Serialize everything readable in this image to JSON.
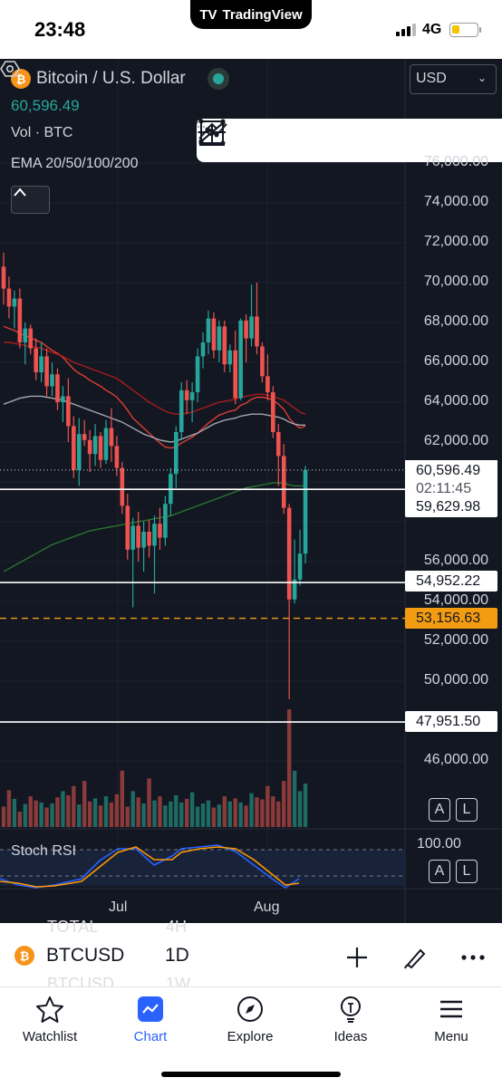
{
  "status_bar": {
    "time": "23:48",
    "app_name": "TradingView",
    "network": "4G"
  },
  "chart_header": {
    "pair": "Bitcoin / U.S. Dollar",
    "price": "60,596.49",
    "volume_label": "Vol · BTC",
    "indicator_label": "EMA 20/50/100/200",
    "currency": "USD"
  },
  "drawing_tools": [
    "trend-line",
    "horizontal-ray",
    "path",
    "rectangle",
    "ray",
    "measure"
  ],
  "price_axis": [
    "76,000.00",
    "74,000.00",
    "72,000.00",
    "70,000.00",
    "68,000.00",
    "66,000.00",
    "64,000.00",
    "62,000.00",
    "56,000.00",
    "54,000.00",
    "52,000.00",
    "50,000.00",
    "46,000.00"
  ],
  "price_lines": [
    {
      "label": "59,629.98",
      "style": "white"
    },
    {
      "label": "54,952.22",
      "style": "white"
    },
    {
      "label": "53,156.63",
      "style": "orange-dashed"
    },
    {
      "label": "47,951.50",
      "style": "white"
    }
  ],
  "last_price": {
    "price": "60,596.49",
    "countdown": "02:11:45"
  },
  "scale_buttons": {
    "auto": "A",
    "log": "L"
  },
  "stoch_rsi": {
    "label": "Stoch RSI",
    "level": "100.00"
  },
  "time_axis": [
    "Jul",
    "Aug"
  ],
  "symbol_bar": {
    "symbol": "BTCUSD",
    "interval": "1D",
    "ghost_above_symbol": "TOTAL",
    "ghost_above_interval": "4H",
    "ghost_below_symbol": "BTCUSD",
    "ghost_below_interval": "1W"
  },
  "tabs": [
    {
      "label": "Watchlist",
      "icon": "star-icon",
      "active": false
    },
    {
      "label": "Chart",
      "icon": "chart-icon",
      "active": true
    },
    {
      "label": "Explore",
      "icon": "compass-icon",
      "active": false
    },
    {
      "label": "Ideas",
      "icon": "lightbulb-icon",
      "active": false
    },
    {
      "label": "Menu",
      "icon": "hamburger-icon",
      "active": false
    }
  ],
  "colors": {
    "background": "#131722",
    "up": "#26a69a",
    "down": "#ef5350",
    "accent": "#2962ff",
    "alert_line": "#f39c12"
  },
  "chart_data": {
    "type": "candlestick",
    "symbol": "BTCUSD",
    "interval": "1D",
    "ylim": [
      45000,
      77000
    ],
    "x_ticks": [
      "Jul",
      "Aug"
    ],
    "candles": [
      [
        70800,
        71500,
        68900,
        69700
      ],
      [
        69700,
        70300,
        68200,
        68800
      ],
      [
        68800,
        69600,
        67700,
        69200
      ],
      [
        69200,
        69700,
        66700,
        67000
      ],
      [
        67000,
        68000,
        65900,
        67700
      ],
      [
        67700,
        67900,
        66400,
        66700
      ],
      [
        66700,
        67200,
        65100,
        65500
      ],
      [
        65500,
        67000,
        65000,
        66300
      ],
      [
        66300,
        66700,
        64300,
        64800
      ],
      [
        64800,
        66000,
        64300,
        65400
      ],
      [
        65400,
        65700,
        63600,
        64000
      ],
      [
        64000,
        64800,
        63000,
        64300
      ],
      [
        64300,
        65200,
        62000,
        62800
      ],
      [
        62800,
        63300,
        60200,
        60600
      ],
      [
        60600,
        63200,
        59800,
        62400
      ],
      [
        62400,
        63100,
        61800,
        62100
      ],
      [
        62100,
        62600,
        60500,
        61400
      ],
      [
        61400,
        62900,
        60800,
        62300
      ],
      [
        62300,
        62500,
        60700,
        61100
      ],
      [
        61100,
        63100,
        60900,
        62700
      ],
      [
        62700,
        63700,
        61000,
        61800
      ],
      [
        61800,
        62300,
        60300,
        60700
      ],
      [
        60700,
        61000,
        58400,
        58800
      ],
      [
        58800,
        59400,
        56100,
        56600
      ],
      [
        56600,
        58200,
        53700,
        57800
      ],
      [
        57800,
        58500,
        56000,
        56700
      ],
      [
        56700,
        58000,
        55500,
        57500
      ],
      [
        57500,
        58100,
        56200,
        56800
      ],
      [
        56800,
        58300,
        54400,
        57900
      ],
      [
        57900,
        58700,
        56600,
        57200
      ],
      [
        57200,
        59300,
        56800,
        58900
      ],
      [
        58900,
        60700,
        58300,
        60400
      ],
      [
        60400,
        62800,
        59700,
        62500
      ],
      [
        62500,
        65000,
        62100,
        64600
      ],
      [
        64600,
        65100,
        63400,
        64100
      ],
      [
        64100,
        65000,
        63000,
        64500
      ],
      [
        64500,
        66700,
        64000,
        66300
      ],
      [
        66300,
        67500,
        65700,
        67000
      ],
      [
        67000,
        68600,
        66400,
        68200
      ],
      [
        68200,
        68500,
        66200,
        66600
      ],
      [
        66600,
        68100,
        66000,
        67800
      ],
      [
        67800,
        68100,
        65500,
        65900
      ],
      [
        65900,
        66900,
        65500,
        66600
      ],
      [
        66600,
        67600,
        63900,
        64200
      ],
      [
        64200,
        68200,
        64100,
        68100
      ],
      [
        68100,
        68400,
        66000,
        67200
      ],
      [
        67200,
        69900,
        66800,
        68300
      ],
      [
        68300,
        70000,
        66400,
        66800
      ],
      [
        66800,
        67000,
        65000,
        65300
      ],
      [
        65300,
        66400,
        64100,
        64500
      ],
      [
        64500,
        64800,
        62200,
        62500
      ],
      [
        62500,
        62900,
        59800,
        61300
      ],
      [
        61300,
        61900,
        58400,
        58700
      ],
      [
        58700,
        58900,
        49100,
        54100
      ],
      [
        54100,
        57100,
        53900,
        55100
      ],
      [
        55100,
        57600,
        54800,
        56400
      ],
      [
        56400,
        60800,
        55900,
        60596
      ]
    ],
    "volume": [
      40,
      72,
      55,
      30,
      45,
      60,
      52,
      48,
      38,
      46,
      58,
      70,
      62,
      80,
      44,
      90,
      50,
      56,
      42,
      60,
      48,
      64,
      110,
      40,
      70,
      58,
      46,
      95,
      52,
      60,
      42,
      50,
      62,
      48,
      55,
      68,
      40,
      46,
      52,
      38,
      44,
      60,
      50,
      56,
      48,
      42,
      66,
      58,
      54,
      80,
      60,
      50,
      90,
      230,
      110,
      70,
      85
    ],
    "ema_lines": [
      {
        "period": 20,
        "color": "#f44336",
        "values": [
          67800,
          67700,
          67600,
          67450,
          67350,
          67250,
          67100,
          67000,
          66800,
          66600,
          66450,
          66250,
          65950,
          65650,
          65450,
          65300,
          65100,
          64950,
          64800,
          64600,
          64450,
          64250,
          63950,
          63600,
          63200,
          62950,
          62700,
          62450,
          62200,
          61950,
          61750,
          61700,
          61750,
          61950,
          62100,
          62250,
          62450,
          62700,
          62950,
          63150,
          63350,
          63450,
          63550,
          63600,
          63850,
          63950,
          64150,
          64250,
          64250,
          64200,
          64100,
          63900,
          63650,
          63200,
          62900,
          62700,
          62800
        ]
      },
      {
        "period": 50,
        "color": "#b71c1c",
        "values": [
          67000,
          67000,
          66950,
          66900,
          66850,
          66800,
          66750,
          66700,
          66600,
          66500,
          66400,
          66300,
          66150,
          66000,
          65900,
          65800,
          65700,
          65600,
          65500,
          65400,
          65300,
          65200,
          65000,
          64800,
          64600,
          64400,
          64200,
          64000,
          63850,
          63700,
          63550,
          63450,
          63400,
          63400,
          63450,
          63500,
          63600,
          63700,
          63800,
          63900,
          64000,
          64050,
          64100,
          64150,
          64250,
          64300,
          64350,
          64400,
          64400,
          64350,
          64300,
          64200,
          64100,
          63900,
          63700,
          63500,
          63400
        ]
      },
      {
        "period": 100,
        "color": "#b2b5be",
        "values": [
          63900,
          64000,
          64100,
          64200,
          64250,
          64300,
          64300,
          64300,
          64250,
          64200,
          64150,
          64100,
          64000,
          63900,
          63800,
          63700,
          63600,
          63500,
          63400,
          63300,
          63200,
          63100,
          63000,
          62850,
          62700,
          62550,
          62400,
          62300,
          62200,
          62100,
          62050,
          62000,
          62050,
          62150,
          62250,
          62350,
          62450,
          62600,
          62750,
          62900,
          63000,
          63100,
          63150,
          63200,
          63300,
          63350,
          63400,
          63400,
          63400,
          63350,
          63300,
          63250,
          63150,
          63000,
          62900,
          62850,
          62850
        ]
      },
      {
        "period": 200,
        "color": "#2e7d32",
        "values": [
          55500,
          55650,
          55800,
          55950,
          56100,
          56250,
          56400,
          56550,
          56700,
          56850,
          56950,
          57050,
          57150,
          57250,
          57350,
          57450,
          57550,
          57600,
          57650,
          57700,
          57750,
          57800,
          57850,
          57900,
          57950,
          58000,
          58050,
          58100,
          58150,
          58200,
          58250,
          58300,
          58400,
          58500,
          58600,
          58700,
          58800,
          58900,
          59000,
          59100,
          59200,
          59300,
          59400,
          59500,
          59600,
          59700,
          59750,
          59800,
          59850,
          59900,
          59950,
          59950,
          59950,
          59850,
          59800,
          59800,
          59800
        ]
      }
    ],
    "horizontal_lines": [
      59629.98,
      54952.22,
      53156.63,
      47951.5
    ],
    "last_price": 60596.49
  }
}
